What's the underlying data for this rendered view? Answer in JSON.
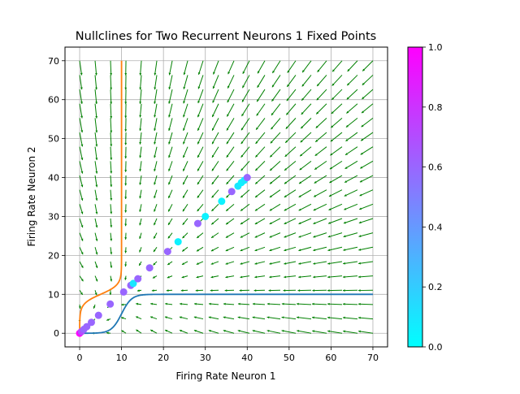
{
  "chart_data": {
    "type": "scatter",
    "title": "Nullclines for Two Recurrent Neurons 1 Fixed Points",
    "xlabel": "Firing Rate Neuron 1",
    "ylabel": "Firing Rate Neuron 2",
    "xlim": [
      -3.5,
      73.5
    ],
    "ylim": [
      -3.5,
      73.5
    ],
    "xticks": [
      0,
      10,
      20,
      30,
      40,
      50,
      60,
      70
    ],
    "yticks": [
      0,
      10,
      20,
      30,
      40,
      50,
      60,
      70
    ],
    "grid": true,
    "nullcline_colors": [
      "#1f77b4",
      "#ff7f0e"
    ],
    "quiver_color": "#008000",
    "colorbar": {
      "colormap": "cool",
      "min": 0.0,
      "max": 1.0,
      "ticks": [
        "0.0",
        "0.2",
        "0.4",
        "0.6",
        "0.8",
        "1.0"
      ]
    },
    "points": [
      {
        "x": 0.0,
        "y": 0.0,
        "c": 1.0
      },
      {
        "x": 0.4,
        "y": 0.4,
        "c": 0.7
      },
      {
        "x": 1.0,
        "y": 1.0,
        "c": 0.6
      },
      {
        "x": 1.7,
        "y": 1.7,
        "c": 0.6
      },
      {
        "x": 2.8,
        "y": 2.8,
        "c": 0.6
      },
      {
        "x": 4.5,
        "y": 4.6,
        "c": 0.6
      },
      {
        "x": 7.3,
        "y": 7.5,
        "c": 0.6
      },
      {
        "x": 10.5,
        "y": 10.6,
        "c": 0.6
      },
      {
        "x": 12.2,
        "y": 12.3,
        "c": 0.6
      },
      {
        "x": 12.8,
        "y": 12.8,
        "c": 0.1
      },
      {
        "x": 13.9,
        "y": 14.0,
        "c": 0.6
      },
      {
        "x": 16.7,
        "y": 16.8,
        "c": 0.6
      },
      {
        "x": 21.0,
        "y": 21.0,
        "c": 0.6
      },
      {
        "x": 23.5,
        "y": 23.5,
        "c": 0.05
      },
      {
        "x": 28.2,
        "y": 28.2,
        "c": 0.6
      },
      {
        "x": 30.0,
        "y": 30.0,
        "c": 0.05
      },
      {
        "x": 33.9,
        "y": 33.9,
        "c": 0.05
      },
      {
        "x": 36.3,
        "y": 36.4,
        "c": 0.6
      },
      {
        "x": 37.8,
        "y": 37.8,
        "c": 0.1
      },
      {
        "x": 38.6,
        "y": 38.7,
        "c": 0.05
      },
      {
        "x": 39.3,
        "y": 39.3,
        "c": 0.1
      },
      {
        "x": 40.0,
        "y": 40.0,
        "c": 0.6
      }
    ]
  }
}
